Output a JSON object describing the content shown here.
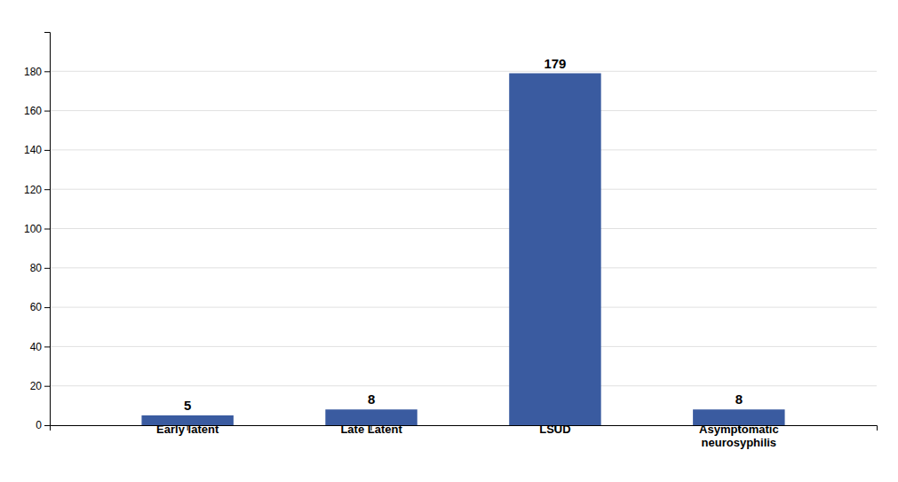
{
  "chart_data": {
    "type": "bar",
    "categories": [
      "Early latent",
      "Late Latent",
      "LSUD",
      "Asymptomatic\nneurosyphilis"
    ],
    "values": [
      5,
      8,
      179,
      8
    ],
    "color": "#3A5BA0",
    "ylim": [
      0,
      200
    ],
    "yticks": [
      0,
      20,
      40,
      60,
      80,
      100,
      120,
      140,
      160,
      180
    ],
    "grid": true,
    "data_labels": true
  }
}
